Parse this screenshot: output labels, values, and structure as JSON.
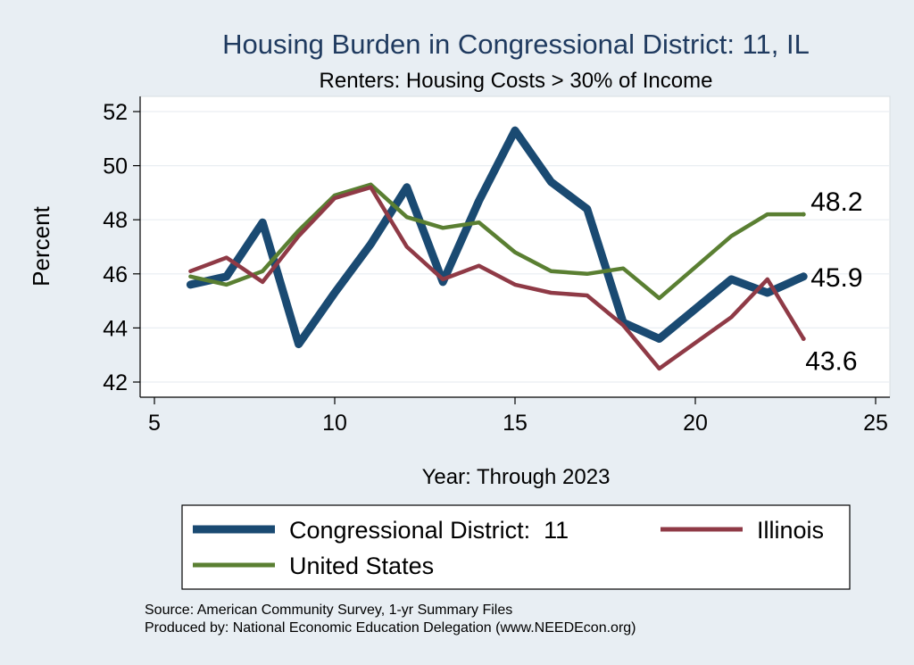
{
  "chart_data": {
    "type": "line",
    "title": "Housing Burden in Congressional District:  11, IL",
    "subtitle": "Renters: Housing Costs > 30% of Income",
    "xlabel": "Year: Through 2023",
    "ylabel": "Percent",
    "xlim": [
      5,
      25
    ],
    "ylim": [
      42,
      52
    ],
    "xticks": [
      5,
      10,
      15,
      20,
      25
    ],
    "yticks": [
      42,
      44,
      46,
      48,
      50,
      52
    ],
    "grid": true,
    "legend_position": "bottom",
    "series": [
      {
        "name": "Congressional District:  11",
        "color": "#1a4a72",
        "x": [
          6,
          7,
          8,
          9,
          10,
          11,
          12,
          13,
          14,
          15,
          16,
          17,
          18,
          19,
          21,
          22,
          23
        ],
        "y": [
          45.6,
          45.9,
          47.9,
          43.4,
          45.3,
          47.1,
          49.2,
          45.7,
          48.7,
          51.3,
          49.4,
          48.4,
          44.2,
          43.6,
          45.8,
          45.3,
          45.9
        ],
        "end_label": "45.9"
      },
      {
        "name": "Illinois",
        "color": "#8f3a46",
        "x": [
          6,
          7,
          8,
          9,
          10,
          11,
          12,
          13,
          14,
          15,
          16,
          17,
          18,
          19,
          21,
          22,
          23
        ],
        "y": [
          46.1,
          46.6,
          45.7,
          47.4,
          48.8,
          49.2,
          47.0,
          45.8,
          46.3,
          45.6,
          45.3,
          45.2,
          44.1,
          42.5,
          44.4,
          45.8,
          43.6
        ],
        "end_label": "43.6"
      },
      {
        "name": "United States",
        "color": "#5a7f32",
        "x": [
          6,
          7,
          8,
          9,
          10,
          11,
          12,
          13,
          14,
          15,
          16,
          17,
          18,
          19,
          21,
          22,
          23
        ],
        "y": [
          45.9,
          45.6,
          46.1,
          47.6,
          48.9,
          49.3,
          48.1,
          47.7,
          47.9,
          46.8,
          46.1,
          46.0,
          46.2,
          45.1,
          47.4,
          48.2,
          48.2
        ],
        "end_label": "48.2"
      }
    ]
  },
  "footer": {
    "source": "Source: American Community Survey, 1-yr Summary Files",
    "producer": "Produced by: National Economic Education Delegation (www.NEEDEcon.org)"
  }
}
